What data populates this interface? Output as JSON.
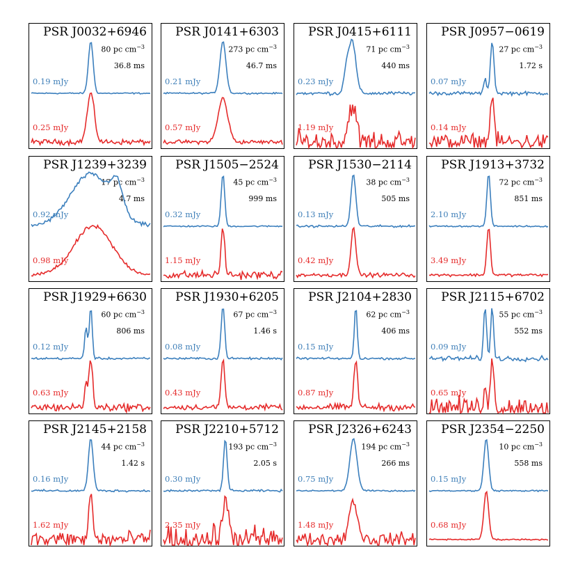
{
  "chart_data": {
    "type": "line",
    "layout": "4x4 grid of pulse profiles",
    "colors": {
      "band_1": "#3b7fbd",
      "band_2": "#e52a2a"
    },
    "panels": [
      {
        "name": "PSR J0032+6946",
        "dm": "80",
        "period": "36.8 ms",
        "blue_flux": "0.19 mJy",
        "red_flux": "0.25 mJy",
        "blue": {
          "center": 0.5,
          "width": 0.02,
          "amp": 1.0,
          "noise": 0.02
        },
        "red": {
          "center": 0.5,
          "width": 0.03,
          "amp": 1.0,
          "noise": 0.08
        }
      },
      {
        "name": "PSR J0141+6303",
        "dm": "273",
        "period": "46.7 ms",
        "blue_flux": "0.21 mJy",
        "red_flux": "0.57 mJy",
        "blue": {
          "center": 0.5,
          "width": 0.025,
          "amp": 1.0,
          "noise": 0.02
        },
        "red": {
          "center": 0.5,
          "width": 0.04,
          "amp": 0.9,
          "noise": 0.06
        }
      },
      {
        "name": "PSR J0415+6111",
        "dm": "71",
        "period": "440 ms",
        "blue_flux": "0.23 mJy",
        "red_flux": "1.19 mJy",
        "blue": {
          "center": 0.47,
          "width": 0.03,
          "amp": 1.0,
          "noise": 0.05,
          "comp": [
            0.42,
            0.02,
            0.4
          ]
        },
        "red": {
          "center": 0.47,
          "width": 0.03,
          "amp": 0.8,
          "noise": 0.35
        }
      },
      {
        "name": "PSR J0957−0619",
        "dm": "27",
        "period": "1.72 s",
        "blue_flux": "0.07 mJy",
        "red_flux": "0.14 mJy",
        "blue": {
          "center": 0.53,
          "width": 0.015,
          "amp": 1.0,
          "noise": 0.05,
          "comp": [
            0.47,
            0.01,
            0.3
          ]
        },
        "red": {
          "center": 0.53,
          "width": 0.015,
          "amp": 1.0,
          "noise": 0.25
        }
      },
      {
        "name": "PSR J1239+3239",
        "dm": "17",
        "period": "4.7 ms",
        "blue_flux": "0.92 mJy",
        "red_flux": "0.98 mJy",
        "blue": {
          "center": 0.5,
          "width": 0.17,
          "amp": 1.0,
          "noise": 0.06,
          "comp": [
            0.72,
            0.05,
            0.5
          ]
        },
        "red": {
          "center": 0.52,
          "width": 0.16,
          "amp": 1.0,
          "noise": 0.06
        }
      },
      {
        "name": "PSR J1505−2524",
        "dm": "45",
        "period": "999 ms",
        "blue_flux": "0.32 mJy",
        "red_flux": "1.15 mJy",
        "blue": {
          "center": 0.5,
          "width": 0.015,
          "amp": 1.0,
          "noise": 0.02
        },
        "red": {
          "center": 0.5,
          "width": 0.015,
          "amp": 1.0,
          "noise": 0.12
        }
      },
      {
        "name": "PSR J1530−2114",
        "dm": "38",
        "period": "505 ms",
        "blue_flux": "0.13 mJy",
        "red_flux": "0.42 mJy",
        "blue": {
          "center": 0.48,
          "width": 0.02,
          "amp": 1.0,
          "noise": 0.03
        },
        "red": {
          "center": 0.48,
          "width": 0.02,
          "amp": 1.0,
          "noise": 0.06
        }
      },
      {
        "name": "PSR J1913+3732",
        "dm": "72",
        "period": "851 ms",
        "blue_flux": "2.10 mJy",
        "red_flux": "3.49 mJy",
        "blue": {
          "center": 0.5,
          "width": 0.015,
          "amp": 1.0,
          "noise": 0.02
        },
        "red": {
          "center": 0.5,
          "width": 0.015,
          "amp": 1.0,
          "noise": 0.04
        }
      },
      {
        "name": "PSR J1929+6630",
        "dm": "60",
        "period": "806 ms",
        "blue_flux": "0.12 mJy",
        "red_flux": "0.63 mJy",
        "blue": {
          "center": 0.5,
          "width": 0.012,
          "amp": 1.0,
          "noise": 0.03,
          "comp": [
            0.46,
            0.012,
            0.6
          ]
        },
        "red": {
          "center": 0.5,
          "width": 0.015,
          "amp": 1.0,
          "noise": 0.12,
          "comp": [
            0.46,
            0.012,
            0.5
          ]
        }
      },
      {
        "name": "PSR J1930+6205",
        "dm": "67",
        "period": "1.46 s",
        "blue_flux": "0.08 mJy",
        "red_flux": "0.43 mJy",
        "blue": {
          "center": 0.5,
          "width": 0.015,
          "amp": 1.0,
          "noise": 0.03
        },
        "red": {
          "center": 0.5,
          "width": 0.015,
          "amp": 1.0,
          "noise": 0.08
        }
      },
      {
        "name": "PSR J2104+2830",
        "dm": "62",
        "period": "406 ms",
        "blue_flux": "0.15 mJy",
        "red_flux": "0.87 mJy",
        "blue": {
          "center": 0.5,
          "width": 0.012,
          "amp": 1.0,
          "noise": 0.03
        },
        "red": {
          "center": 0.5,
          "width": 0.015,
          "amp": 1.0,
          "noise": 0.1
        }
      },
      {
        "name": "PSR J2115+6702",
        "dm": "55",
        "period": "552 ms",
        "blue_flux": "0.09 mJy",
        "red_flux": "0.65 mJy",
        "blue": {
          "center": 0.53,
          "width": 0.012,
          "amp": 1.0,
          "noise": 0.07,
          "comp": [
            0.47,
            0.012,
            1.0
          ]
        },
        "red": {
          "center": 0.53,
          "width": 0.015,
          "amp": 0.9,
          "noise": 0.3,
          "comp": [
            0.47,
            0.01,
            0.6
          ]
        }
      },
      {
        "name": "PSR J2145+2158",
        "dm": "44",
        "period": "1.42 s",
        "blue_flux": "0.16 mJy",
        "red_flux": "1.62 mJy",
        "blue": {
          "center": 0.5,
          "width": 0.02,
          "amp": 1.0,
          "noise": 0.03
        },
        "red": {
          "center": 0.5,
          "width": 0.015,
          "amp": 1.0,
          "noise": 0.25
        }
      },
      {
        "name": "PSR J2210+5712",
        "dm": "193",
        "period": "2.05 s",
        "blue_flux": "0.30 mJy",
        "red_flux": "2.35 mJy",
        "blue": {
          "center": 0.52,
          "width": 0.015,
          "amp": 1.0,
          "noise": 0.03
        },
        "red": {
          "center": 0.52,
          "width": 0.03,
          "amp": 0.7,
          "noise": 0.4
        }
      },
      {
        "name": "PSR J2326+6243",
        "dm": "194",
        "period": "266 ms",
        "blue_flux": "0.75 mJy",
        "red_flux": "1.48 mJy",
        "blue": {
          "center": 0.48,
          "width": 0.03,
          "amp": 1.0,
          "noise": 0.02
        },
        "red": {
          "center": 0.48,
          "width": 0.035,
          "amp": 0.8,
          "noise": 0.2
        }
      },
      {
        "name": "PSR J2354−2250",
        "dm": "10",
        "period": "558 ms",
        "blue_flux": "0.15 mJy",
        "red_flux": "0.68 mJy",
        "blue": {
          "center": 0.48,
          "width": 0.02,
          "amp": 1.0,
          "noise": 0.02
        },
        "red": {
          "center": 0.48,
          "width": 0.02,
          "amp": 1.0,
          "noise": 0.02
        }
      }
    ]
  },
  "dm_unit": "pc cm",
  "dm_exp": "−3"
}
